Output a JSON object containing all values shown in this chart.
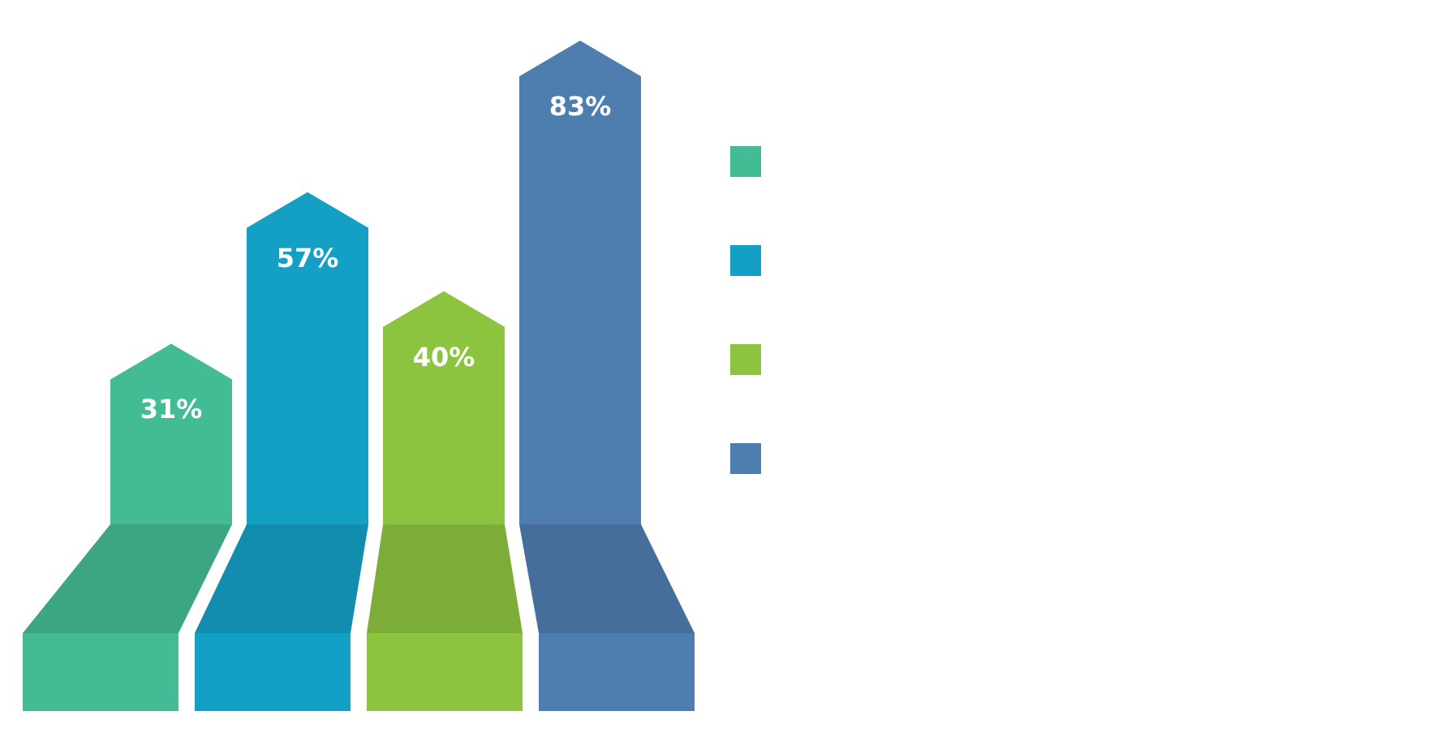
{
  "chart_data": {
    "type": "bar",
    "relative": false,
    "categories": [
      null,
      null,
      null,
      null
    ],
    "values": [
      31,
      57,
      40,
      83
    ],
    "colors": [
      "#43bb95",
      "#14a0c4",
      "#8cc43f",
      "#4e7db0"
    ],
    "value_labels": [
      "31%",
      "57%",
      "40%",
      "83%"
    ]
  }
}
